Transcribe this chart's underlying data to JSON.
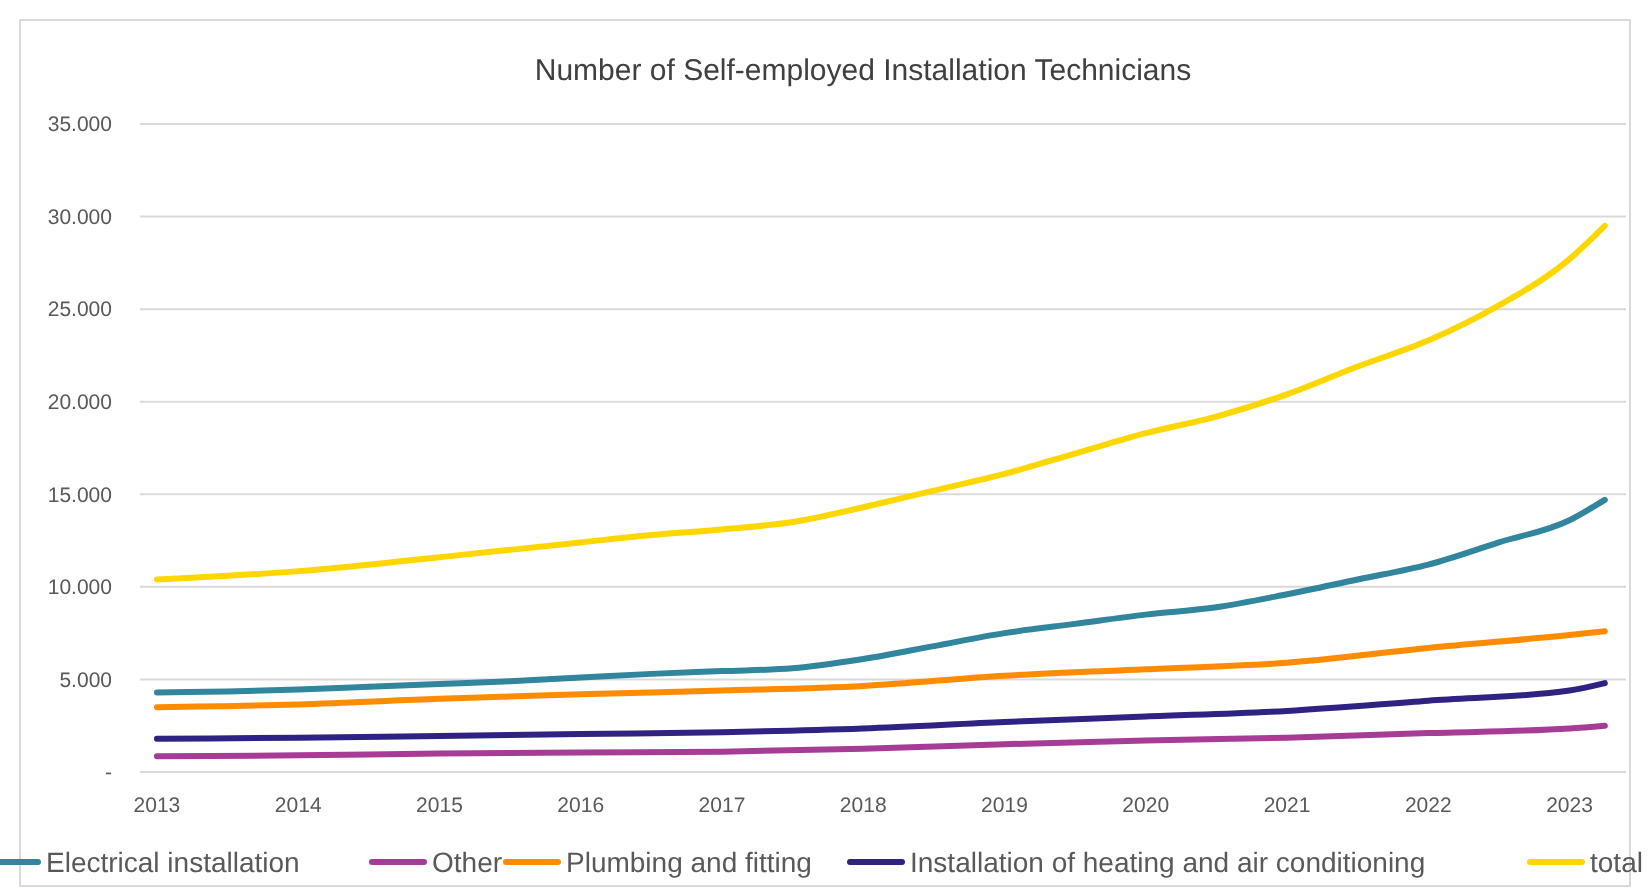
{
  "chart_data": {
    "type": "line",
    "title": "Number of Self-employed Installation Technicians",
    "xlim": [
      2012.88,
      2023.4
    ],
    "xticks": [
      2013,
      2014,
      2015,
      2016,
      2017,
      2018,
      2019,
      2020,
      2021,
      2022,
      2023
    ],
    "ylim": [
      0,
      35000
    ],
    "yticks": [
      {
        "value": 0,
        "label": "-"
      },
      {
        "value": 5000,
        "label": "5.000"
      },
      {
        "value": 10000,
        "label": "10.000"
      },
      {
        "value": 15000,
        "label": "15.000"
      },
      {
        "value": 20000,
        "label": "20.000"
      },
      {
        "value": 25000,
        "label": "25.000"
      },
      {
        "value": 30000,
        "label": "30.000"
      },
      {
        "value": 35000,
        "label": "35.000"
      }
    ],
    "grid": "y",
    "legend": "bottom",
    "marker": "none",
    "line_style": "solid",
    "series": [
      {
        "name": "Electrical installation",
        "color": "#31859c",
        "x": [
          2013,
          2013.5,
          2014,
          2014.5,
          2015,
          2015.5,
          2016,
          2016.5,
          2017,
          2017.5,
          2018,
          2018.5,
          2019,
          2019.5,
          2020,
          2020.5,
          2021,
          2021.5,
          2022,
          2022.5,
          2023,
          2023.25
        ],
        "values": [
          4300,
          4350,
          4450,
          4600,
          4750,
          4900,
          5100,
          5300,
          5450,
          5600,
          6100,
          6800,
          7500,
          8000,
          8500,
          8900,
          9600,
          10400,
          11200,
          12400,
          13600,
          14700
        ]
      },
      {
        "name": "Other",
        "color": "#a63c96",
        "x": [
          2013,
          2014,
          2015,
          2016,
          2017,
          2018,
          2019,
          2020,
          2021,
          2022,
          2023,
          2023.25
        ],
        "values": [
          850,
          900,
          1000,
          1050,
          1100,
          1250,
          1500,
          1700,
          1850,
          2100,
          2350,
          2500
        ]
      },
      {
        "name": "Plumbing and fitting",
        "color": "#ff8c00",
        "x": [
          2013,
          2014,
          2015,
          2016,
          2017,
          2018,
          2019,
          2020,
          2021,
          2022,
          2023,
          2023.25
        ],
        "values": [
          3500,
          3650,
          3950,
          4200,
          4400,
          4650,
          5200,
          5550,
          5900,
          6700,
          7400,
          7600
        ]
      },
      {
        "name": "Installation of heating and air conditioning",
        "color": "#2e2383",
        "x": [
          2013,
          2014,
          2015,
          2016,
          2017,
          2018,
          2019,
          2020,
          2021,
          2022,
          2023,
          2023.25
        ],
        "values": [
          1800,
          1850,
          1950,
          2050,
          2150,
          2350,
          2700,
          3000,
          3300,
          3850,
          4400,
          4800
        ]
      },
      {
        "name": "total",
        "color": "#ffd700",
        "x": [
          2013,
          2013.5,
          2014,
          2014.5,
          2015,
          2015.5,
          2016,
          2016.5,
          2017,
          2017.5,
          2018,
          2018.5,
          2019,
          2019.5,
          2020,
          2020.5,
          2021,
          2021.5,
          2022,
          2022.5,
          2023,
          2023.25
        ],
        "values": [
          10400,
          10600,
          10850,
          11200,
          11600,
          12000,
          12400,
          12800,
          13100,
          13500,
          14300,
          15200,
          16100,
          17200,
          18300,
          19200,
          20400,
          21900,
          23300,
          25200,
          27700,
          29500
        ]
      }
    ]
  }
}
